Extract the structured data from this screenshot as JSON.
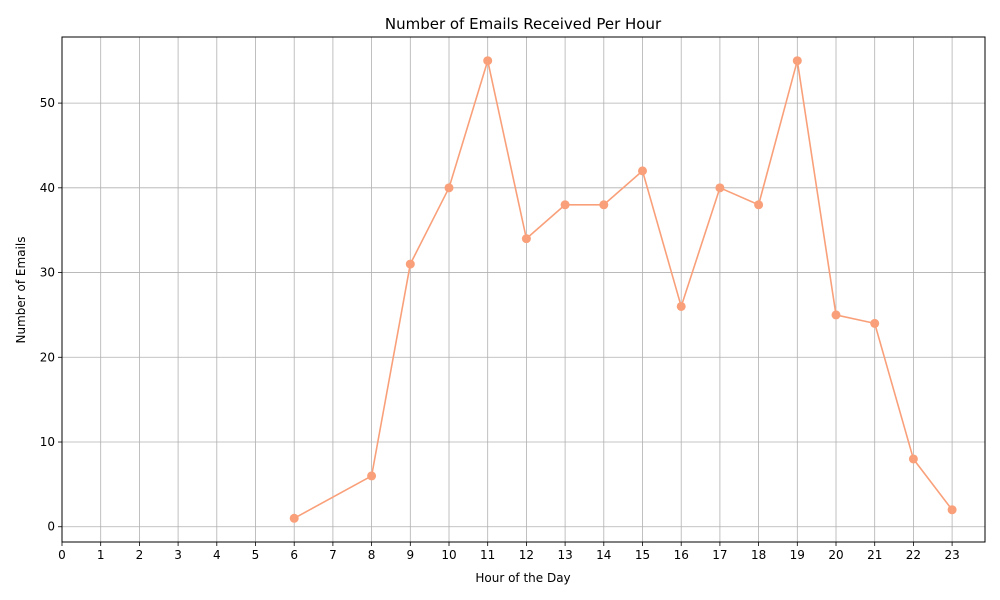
{
  "chart_data": {
    "type": "line",
    "title": "Number of Emails Received Per Hour",
    "xlabel": "Hour of the Day",
    "ylabel": "Number of Emails",
    "xlim": [
      0,
      23.85
    ],
    "ylim": [
      -1.8,
      57.8
    ],
    "x_ticks": [
      "0",
      "1",
      "2",
      "3",
      "4",
      "5",
      "6",
      "7",
      "8",
      "9",
      "10",
      "11",
      "12",
      "13",
      "14",
      "15",
      "16",
      "17",
      "18",
      "19",
      "20",
      "21",
      "22",
      "23"
    ],
    "y_ticks": [
      "0",
      "10",
      "20",
      "30",
      "40",
      "50"
    ],
    "grid": true,
    "color": "#f9a07a",
    "series": [
      {
        "x": [
          6,
          8,
          9,
          10,
          11,
          12,
          13,
          14,
          15,
          16,
          17,
          18,
          19,
          20,
          21,
          22,
          23
        ],
        "values": [
          1,
          6,
          31,
          40,
          55,
          34,
          38,
          38,
          42,
          26,
          40,
          38,
          55,
          25,
          24,
          8,
          2
        ]
      }
    ]
  }
}
